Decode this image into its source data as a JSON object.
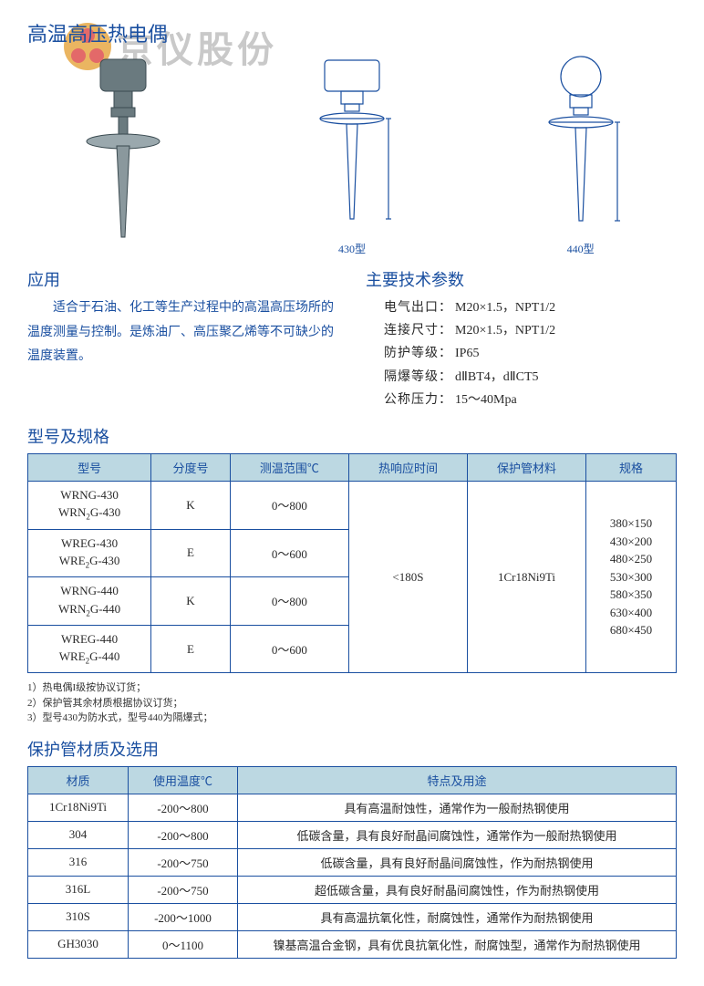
{
  "page_title": "高温高压热电偶",
  "watermark_text": "京仪股份",
  "diagram_labels": {
    "model_430": "430型",
    "model_440": "440型"
  },
  "application": {
    "heading": "应用",
    "text": "适合于石油、化工等生产过程中的高温高压场所的温度测量与控制。是炼油厂、高压聚乙烯等不可缺少的温度装置。"
  },
  "tech_params": {
    "heading": "主要技术参数",
    "rows": [
      {
        "label": "电气出口：",
        "value": "M20×1.5，NPT1/2"
      },
      {
        "label": "连接尺寸：",
        "value": "M20×1.5，NPT1/2"
      },
      {
        "label": "防护等级：",
        "value": "IP65"
      },
      {
        "label": "隔爆等级：",
        "value": "dⅡBT4，dⅡCT5"
      },
      {
        "label": "公称压力：",
        "value": "15～40Mpa"
      }
    ]
  },
  "spec_table": {
    "heading": "型号及规格",
    "headers": [
      "型号",
      "分度号",
      "测温范围℃",
      "热响应时间",
      "保护管材料",
      "规格"
    ],
    "rows": [
      {
        "model_a": "WRNG-430",
        "model_b": "WRN₂G-430",
        "grade": "K",
        "range": "0～800"
      },
      {
        "model_a": "WREG-430",
        "model_b": "WRE₂G-430",
        "grade": "E",
        "range": "0～600"
      },
      {
        "model_a": "WRNG-440",
        "model_b": "WRN₂G-440",
        "grade": "K",
        "range": "0～800"
      },
      {
        "model_a": "WREG-440",
        "model_b": "WRE₂G-440",
        "grade": "E",
        "range": "0～600"
      }
    ],
    "merged": {
      "response_time": "<180S",
      "tube_material": "1Cr18Ni9Ti",
      "sizes": [
        "380×150",
        "430×200",
        "480×250",
        "530×300",
        "580×350",
        "630×400",
        "680×450"
      ]
    }
  },
  "notes": [
    "1）热电偶I级按协议订货；",
    "2）保护管其余材质根据协议订货；",
    "3）型号430为防水式，型号440为隔爆式；"
  ],
  "material_table": {
    "heading": "保护管材质及选用",
    "headers": [
      "材质",
      "使用温度℃",
      "特点及用途"
    ],
    "rows": [
      [
        "1Cr18Ni9Ti",
        "-200～800",
        "具有高温耐蚀性，通常作为一般耐热钢使用"
      ],
      [
        "304",
        "-200～800",
        "低碳含量，具有良好耐晶间腐蚀性，通常作为一般耐热钢使用"
      ],
      [
        "316",
        "-200～750",
        "低碳含量，具有良好耐晶间腐蚀性，作为耐热钢使用"
      ],
      [
        "316L",
        "-200～750",
        "超低碳含量，具有良好耐晶间腐蚀性，作为耐热钢使用"
      ],
      [
        "310S",
        "-200～1000",
        "具有高温抗氧化性，耐腐蚀性，通常作为耐热钢使用"
      ],
      [
        "GH3030",
        "0～1100",
        "镍基高温合金钢，具有优良抗氧化性，耐腐蚀型，通常作为耐热钢使用"
      ]
    ]
  },
  "colors": {
    "heading": "#1a4fa0",
    "border": "#1a4fa0",
    "th_bg": "#bcd8e2",
    "watermark": "#c9c9c9"
  }
}
